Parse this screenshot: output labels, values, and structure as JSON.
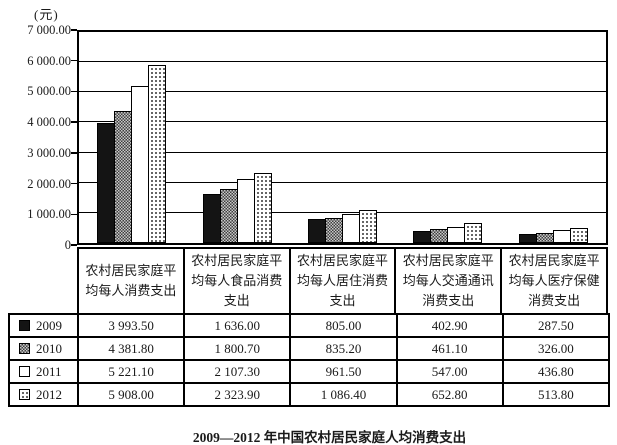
{
  "unit_label": "(元)",
  "caption": "2009—2012 年中国农村居民家庭人均消费支出",
  "chart_data": {
    "type": "bar",
    "title": "2009—2012 年中国农村居民家庭人均消费支出",
    "ylabel": "(元)",
    "xlabel": "",
    "ylim": [
      0,
      7000
    ],
    "grid": true,
    "legend_position": "table-left",
    "categories": [
      "农村居民家庭平均每人消费支出",
      "农村居民家庭平均每人食品消费支出",
      "农村居民家庭平均每人居住消费支出",
      "农村居民家庭平均每人交通通讯消费支出",
      "农村居民家庭平均每人医疗保健消费支出"
    ],
    "series": [
      {
        "name": "2009",
        "pattern": "solid-black",
        "values": [
          3993.5,
          1636.0,
          805.0,
          402.9,
          287.5
        ]
      },
      {
        "name": "2010",
        "pattern": "crosshatch",
        "values": [
          4381.8,
          1800.7,
          835.2,
          461.1,
          326.0
        ]
      },
      {
        "name": "2011",
        "pattern": "white",
        "values": [
          5221.1,
          2107.3,
          961.5,
          547.0,
          436.8
        ]
      },
      {
        "name": "2012",
        "pattern": "dotted",
        "values": [
          5908.0,
          2323.9,
          1086.4,
          652.8,
          513.8
        ]
      }
    ],
    "yticks": [
      {
        "value": 7000,
        "label": "7 000.00"
      },
      {
        "value": 6000,
        "label": "6 000.00"
      },
      {
        "value": 5000,
        "label": "5 000.00"
      },
      {
        "value": 4000,
        "label": "4 000.00"
      },
      {
        "value": 3000,
        "label": "3 000.00"
      },
      {
        "value": 2000,
        "label": "2 000.00"
      },
      {
        "value": 1000,
        "label": "1 000.00"
      },
      {
        "value": 0,
        "label": "0"
      }
    ]
  },
  "table": {
    "rows": [
      {
        "year": "2009",
        "pattern": "solid-black",
        "cells": [
          "3 993.50",
          "1 636.00",
          "805.00",
          "402.90",
          "287.50"
        ]
      },
      {
        "year": "2010",
        "pattern": "crosshatch",
        "cells": [
          "4 381.80",
          "1 800.70",
          "835.20",
          "461.10",
          "326.00"
        ]
      },
      {
        "year": "2011",
        "pattern": "white",
        "cells": [
          "5 221.10",
          "2 107.30",
          "961.50",
          "547.00",
          "436.80"
        ]
      },
      {
        "year": "2012",
        "pattern": "dotted",
        "cells": [
          "5 908.00",
          "2 323.90",
          "1 086.40",
          "652.80",
          "513.80"
        ]
      }
    ]
  }
}
